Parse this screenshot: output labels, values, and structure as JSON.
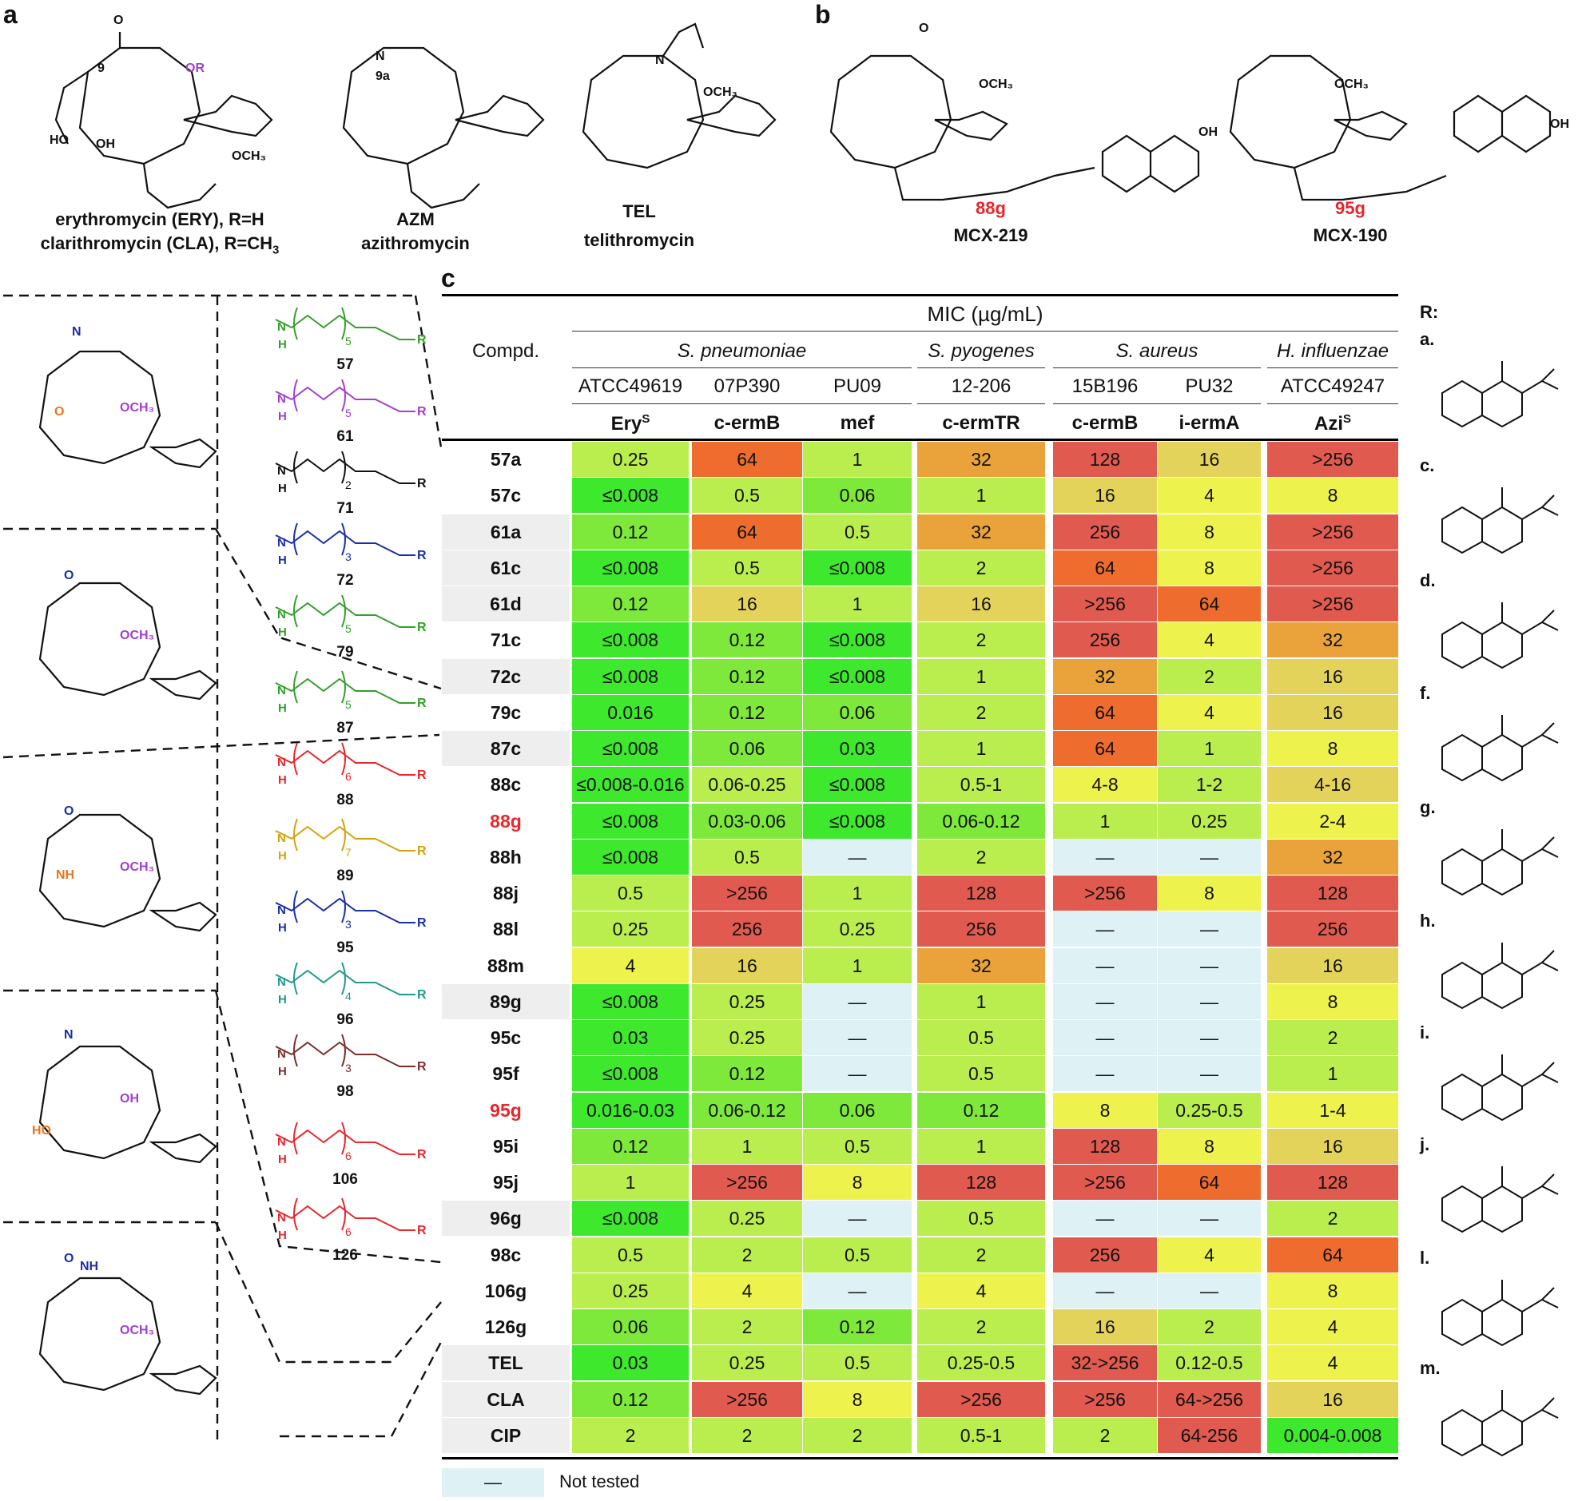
{
  "panels": {
    "a": "a",
    "b": "b",
    "c": "c"
  },
  "structures_a": {
    "ery_line1": "erythromycin (ERY), R=H",
    "ery_line2": "clarithromycin (CLA), R=CH",
    "ery_line2_sub": "3",
    "azm_abbr": "AZM",
    "azm_name": "azithromycin",
    "tel_abbr": "TEL",
    "tel_name": "telithromycin"
  },
  "structures_b": {
    "c1_code": "88g",
    "c1_name": "MCX-219",
    "c2_code": "95g",
    "c2_name": "MCX-190"
  },
  "linkers": {
    "labels": [
      "57",
      "61",
      "71",
      "72",
      "79",
      "87",
      "88",
      "89",
      "95",
      "96",
      "98",
      "106",
      "126"
    ],
    "repeat_counts": [
      "5",
      "5",
      "2|3",
      "3|2",
      "5",
      "5",
      "6",
      "7",
      "3|2",
      "4|2",
      "3|2",
      "6",
      "6"
    ],
    "colors": [
      "#33a02c",
      "#a23fd1",
      "#111111",
      "#1a2fa8",
      "#33a02c",
      "#33a02c",
      "#e8262b",
      "#d4a20b",
      "#1a2fa8",
      "#1f9a8a",
      "#7b2d2d",
      "#e8262b",
      "#e8262b"
    ]
  },
  "table": {
    "mic_header": "MIC (µg/mL)",
    "compd_header": "Compd.",
    "organisms": [
      "S. pneumoniae",
      "S. pyogenes",
      "S. aureus",
      "H. influenzae"
    ],
    "strains": [
      "ATCC49619",
      "07P390",
      "PU09",
      "12-206",
      "15B196",
      "PU32",
      "ATCC49247"
    ],
    "phenotypes": [
      "Ery",
      "c-ermB",
      "mef",
      "c-ermTR",
      "c-ermB",
      "i-ermA",
      "Azi"
    ],
    "phenotype_sup": "S",
    "rows": [
      {
        "c": "57a",
        "v": [
          "0.25",
          "64",
          "1",
          "32",
          "128",
          "16",
          ">256"
        ]
      },
      {
        "c": "57c",
        "v": [
          "≤0.008",
          "0.5",
          "0.06",
          "1",
          "16",
          "4",
          "8"
        ]
      },
      {
        "c": "61a",
        "v": [
          "0.12",
          "64",
          "0.5",
          "32",
          "256",
          "8",
          ">256"
        ]
      },
      {
        "c": "61c",
        "v": [
          "≤0.008",
          "0.5",
          "≤0.008",
          "2",
          "64",
          "8",
          ">256"
        ]
      },
      {
        "c": "61d",
        "v": [
          "0.12",
          "16",
          "1",
          "16",
          ">256",
          "64",
          ">256"
        ]
      },
      {
        "c": "71c",
        "v": [
          "≤0.008",
          "0.12",
          "≤0.008",
          "2",
          "256",
          "4",
          "32"
        ]
      },
      {
        "c": "72c",
        "v": [
          "≤0.008",
          "0.12",
          "≤0.008",
          "1",
          "32",
          "2",
          "16"
        ]
      },
      {
        "c": "79c",
        "v": [
          "0.016",
          "0.12",
          "0.06",
          "2",
          "64",
          "4",
          "16"
        ]
      },
      {
        "c": "87c",
        "v": [
          "≤0.008",
          "0.06",
          "0.03",
          "1",
          "64",
          "1",
          "8"
        ]
      },
      {
        "c": "88c",
        "v": [
          "≤0.008-0.016",
          "0.06-0.25",
          "≤0.008",
          "0.5-1",
          "4-8",
          "1-2",
          "4-16"
        ]
      },
      {
        "c": "88g",
        "v": [
          "≤0.008",
          "0.03-0.06",
          "≤0.008",
          "0.06-0.12",
          "1",
          "0.25",
          "2-4"
        ]
      },
      {
        "c": "88h",
        "v": [
          "≤0.008",
          "0.5",
          "—",
          "2",
          "—",
          "—",
          "32"
        ]
      },
      {
        "c": "88j",
        "v": [
          "0.5",
          ">256",
          "1",
          "128",
          ">256",
          "8",
          "128"
        ]
      },
      {
        "c": "88l",
        "v": [
          "0.25",
          "256",
          "0.25",
          "256",
          "—",
          "—",
          "256"
        ]
      },
      {
        "c": "88m",
        "v": [
          "4",
          "16",
          "1",
          "32",
          "—",
          "—",
          "16"
        ]
      },
      {
        "c": "89g",
        "v": [
          "≤0.008",
          "0.25",
          "—",
          "1",
          "—",
          "—",
          "8"
        ]
      },
      {
        "c": "95c",
        "v": [
          "0.03",
          "0.25",
          "—",
          "0.5",
          "—",
          "—",
          "2"
        ]
      },
      {
        "c": "95f",
        "v": [
          "≤0.008",
          "0.12",
          "—",
          "0.5",
          "—",
          "—",
          "1"
        ]
      },
      {
        "c": "95g",
        "v": [
          "0.016-0.03",
          "0.06-0.12",
          "0.06",
          "0.12",
          "8",
          "0.25-0.5",
          "1-4"
        ]
      },
      {
        "c": "95i",
        "v": [
          "0.12",
          "1",
          "0.5",
          "1",
          "128",
          "8",
          "16"
        ]
      },
      {
        "c": "95j",
        "v": [
          "1",
          ">256",
          "8",
          "128",
          ">256",
          "64",
          "128"
        ]
      },
      {
        "c": "96g",
        "v": [
          "≤0.008",
          "0.25",
          "—",
          "0.5",
          "—",
          "—",
          "2"
        ]
      },
      {
        "c": "98c",
        "v": [
          "0.5",
          "2",
          "0.5",
          "2",
          "256",
          "4",
          "64"
        ]
      },
      {
        "c": "106g",
        "v": [
          "0.25",
          "4",
          "—",
          "4",
          "—",
          "—",
          "8"
        ]
      },
      {
        "c": "126g",
        "v": [
          "0.06",
          "2",
          "0.12",
          "2",
          "16",
          "2",
          "4"
        ]
      },
      {
        "c": "TEL",
        "v": [
          "0.03",
          "0.25",
          "0.5",
          "0.25-0.5",
          "32->256",
          "0.12-0.5",
          "4"
        ]
      },
      {
        "c": "CLA",
        "v": [
          "0.12",
          ">256",
          "8",
          ">256",
          ">256",
          "64->256",
          "16"
        ]
      },
      {
        "c": "CIP",
        "v": [
          "2",
          "2",
          "2",
          "0.5-1",
          "2",
          "64-256",
          "0.004-0.008"
        ]
      }
    ],
    "red_compounds": [
      "88g",
      "95g"
    ],
    "shaded_compounds": [
      "61a",
      "61c",
      "61d",
      "72c",
      "87c",
      "89g",
      "96g",
      "TEL",
      "CLA",
      "CIP"
    ]
  },
  "legend": {
    "symbol": "—",
    "text": "Not tested"
  },
  "r_groups": {
    "title": "R:",
    "labels": [
      "a.",
      "c.",
      "d.",
      "f.",
      "g.",
      "h.",
      "i.",
      "j.",
      "l.",
      "m."
    ]
  },
  "colors": {
    "green_dark": "#3ee82c",
    "green": "#7ee83b",
    "green_light": "#b9ee4e",
    "yellow": "#edf34c",
    "gold": "#e4d35a",
    "orange": "#e9a33a",
    "orange_red": "#ee6c2d",
    "red": "#e05a4f",
    "not_tested": "#def1f4",
    "highlight": "#e8262b"
  }
}
